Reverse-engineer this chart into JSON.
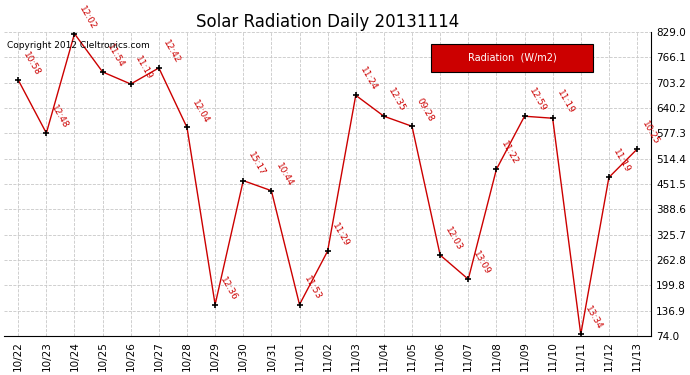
{
  "title": "Solar Radiation Daily 20131114",
  "copyright": "Copyright 2012 Cleltronics.com",
  "legend_label": "Radiation  (W/m2)",
  "x_labels": [
    "10/22",
    "10/23",
    "10/24",
    "10/25",
    "10/26",
    "10/27",
    "10/28",
    "10/29",
    "10/30",
    "10/31",
    "11/01",
    "11/02",
    "11/03",
    "11/04",
    "11/05",
    "11/06",
    "11/07",
    "11/08",
    "11/09",
    "11/10",
    "11/11",
    "11/12",
    "11/13"
  ],
  "y_values": [
    710,
    578,
    825,
    730,
    700,
    740,
    592,
    152,
    460,
    435,
    152,
    285,
    672,
    620,
    595,
    275,
    215,
    488,
    620,
    615,
    78,
    468,
    538
  ],
  "point_labels": [
    "10:58",
    "12:48",
    "12:02",
    "11:54",
    "11:19",
    "12:42",
    "12:04",
    "12:36",
    "15:17",
    "10:44",
    "11:53",
    "11:29",
    "11:24",
    "12:35",
    "09:28",
    "12:03",
    "13:09",
    "11:22",
    "12:59",
    "11:19",
    "13:34",
    "11:19",
    "10:25"
  ],
  "ylim_min": 74.0,
  "ylim_max": 829.0,
  "ytick_values": [
    74.0,
    136.9,
    199.8,
    262.8,
    325.7,
    388.6,
    451.5,
    514.4,
    577.3,
    640.2,
    703.2,
    766.1,
    829.0
  ],
  "line_color": "#cc0000",
  "marker_color": "#000000",
  "label_color": "#cc0000",
  "grid_color": "#c8c8c8",
  "bg_color": "#ffffff",
  "legend_bg": "#cc0000",
  "legend_text_color": "#ffffff",
  "title_color": "#000000",
  "copyright_color": "#000000",
  "title_fontsize": 12,
  "tick_fontsize": 7.5,
  "label_fontsize": 6.5,
  "copyright_fontsize": 6.5
}
